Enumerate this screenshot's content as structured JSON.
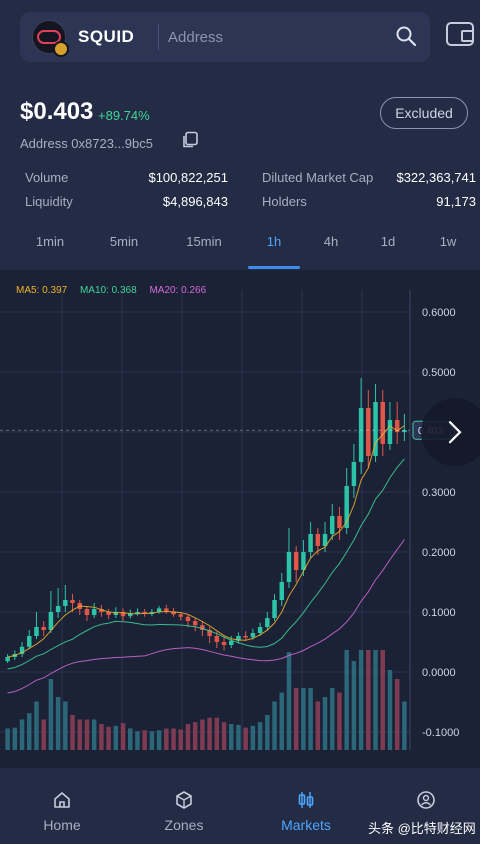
{
  "header": {
    "token_name": "SQUID",
    "address_placeholder": "Address"
  },
  "token": {
    "price": "$0.403",
    "change": "+89.74%",
    "excluded_label": "Excluded",
    "address": "Address 0x8723...9bc5"
  },
  "stats": {
    "volume_label": "Volume",
    "volume_value": "$100,822,251",
    "liquidity_label": "Liquidity",
    "liquidity_value": "$4,896,843",
    "mcap_label": "Diluted Market Cap",
    "mcap_value": "$322,363,741",
    "holders_label": "Holders",
    "holders_value": "91,173"
  },
  "tabs": [
    "1min",
    "5min",
    "15min",
    "1h",
    "4h",
    "1d",
    "1w"
  ],
  "active_tab": "1h",
  "chart_data": {
    "type": "candlestick",
    "ma_legend": [
      {
        "label": "MA5: 0.397",
        "color": "#f0b429"
      },
      {
        "label": "MA10: 0.368",
        "color": "#3ed598"
      },
      {
        "label": "MA20: 0.266",
        "color": "#d36bd8"
      }
    ],
    "yticks": [
      "0.6000",
      "0.5000",
      "0.4000",
      "0.3000",
      "0.2000",
      "0.1000",
      "0.0000",
      "-0.1000"
    ],
    "ylim": [
      -0.13,
      0.62
    ],
    "current_price_label": "0.403",
    "candles": [
      [
        0.018,
        0.025,
        0.03,
        0.015
      ],
      [
        0.025,
        0.03,
        0.036,
        0.02
      ],
      [
        0.03,
        0.042,
        0.05,
        0.025
      ],
      [
        0.042,
        0.06,
        0.07,
        0.038
      ],
      [
        0.06,
        0.075,
        0.1,
        0.055
      ],
      [
        0.075,
        0.07,
        0.085,
        0.06
      ],
      [
        0.07,
        0.1,
        0.135,
        0.065
      ],
      [
        0.1,
        0.11,
        0.14,
        0.09
      ],
      [
        0.11,
        0.12,
        0.145,
        0.1
      ],
      [
        0.12,
        0.115,
        0.13,
        0.1
      ],
      [
        0.115,
        0.105,
        0.12,
        0.095
      ],
      [
        0.105,
        0.095,
        0.11,
        0.085
      ],
      [
        0.095,
        0.105,
        0.115,
        0.09
      ],
      [
        0.105,
        0.1,
        0.112,
        0.092
      ],
      [
        0.1,
        0.095,
        0.105,
        0.088
      ],
      [
        0.095,
        0.1,
        0.108,
        0.09
      ],
      [
        0.1,
        0.093,
        0.106,
        0.085
      ],
      [
        0.093,
        0.098,
        0.104,
        0.089
      ],
      [
        0.098,
        0.1,
        0.106,
        0.094
      ],
      [
        0.1,
        0.097,
        0.105,
        0.092
      ],
      [
        0.097,
        0.1,
        0.105,
        0.093
      ],
      [
        0.1,
        0.106,
        0.11,
        0.097
      ],
      [
        0.106,
        0.101,
        0.112,
        0.097
      ],
      [
        0.101,
        0.096,
        0.107,
        0.092
      ],
      [
        0.096,
        0.092,
        0.1,
        0.086
      ],
      [
        0.092,
        0.085,
        0.095,
        0.075
      ],
      [
        0.085,
        0.078,
        0.09,
        0.068
      ],
      [
        0.078,
        0.07,
        0.085,
        0.06
      ],
      [
        0.07,
        0.06,
        0.075,
        0.048
      ],
      [
        0.06,
        0.05,
        0.067,
        0.04
      ],
      [
        0.05,
        0.045,
        0.058,
        0.036
      ],
      [
        0.045,
        0.052,
        0.06,
        0.04
      ],
      [
        0.052,
        0.06,
        0.066,
        0.047
      ],
      [
        0.06,
        0.058,
        0.068,
        0.052
      ],
      [
        0.058,
        0.065,
        0.072,
        0.054
      ],
      [
        0.065,
        0.075,
        0.082,
        0.06
      ],
      [
        0.075,
        0.09,
        0.1,
        0.07
      ],
      [
        0.09,
        0.12,
        0.13,
        0.085
      ],
      [
        0.12,
        0.15,
        0.165,
        0.11
      ],
      [
        0.15,
        0.2,
        0.24,
        0.14
      ],
      [
        0.2,
        0.17,
        0.21,
        0.15
      ],
      [
        0.17,
        0.2,
        0.22,
        0.16
      ],
      [
        0.2,
        0.23,
        0.25,
        0.19
      ],
      [
        0.23,
        0.21,
        0.24,
        0.195
      ],
      [
        0.21,
        0.23,
        0.25,
        0.2
      ],
      [
        0.23,
        0.26,
        0.28,
        0.22
      ],
      [
        0.26,
        0.24,
        0.275,
        0.22
      ],
      [
        0.24,
        0.31,
        0.34,
        0.23
      ],
      [
        0.31,
        0.35,
        0.38,
        0.29
      ],
      [
        0.35,
        0.44,
        0.49,
        0.33
      ],
      [
        0.44,
        0.36,
        0.47,
        0.34
      ],
      [
        0.36,
        0.45,
        0.48,
        0.35
      ],
      [
        0.45,
        0.38,
        0.47,
        0.36
      ],
      [
        0.38,
        0.42,
        0.45,
        0.37
      ],
      [
        0.42,
        0.4,
        0.45,
        0.38
      ],
      [
        0.4,
        0.403,
        0.43,
        0.385
      ]
    ]
  },
  "nav": {
    "items": [
      {
        "label": "Home"
      },
      {
        "label": "Zones"
      },
      {
        "label": "Markets"
      },
      {
        "label": "My"
      }
    ],
    "active": "Markets"
  },
  "watermark": "头条 @比特财经网"
}
